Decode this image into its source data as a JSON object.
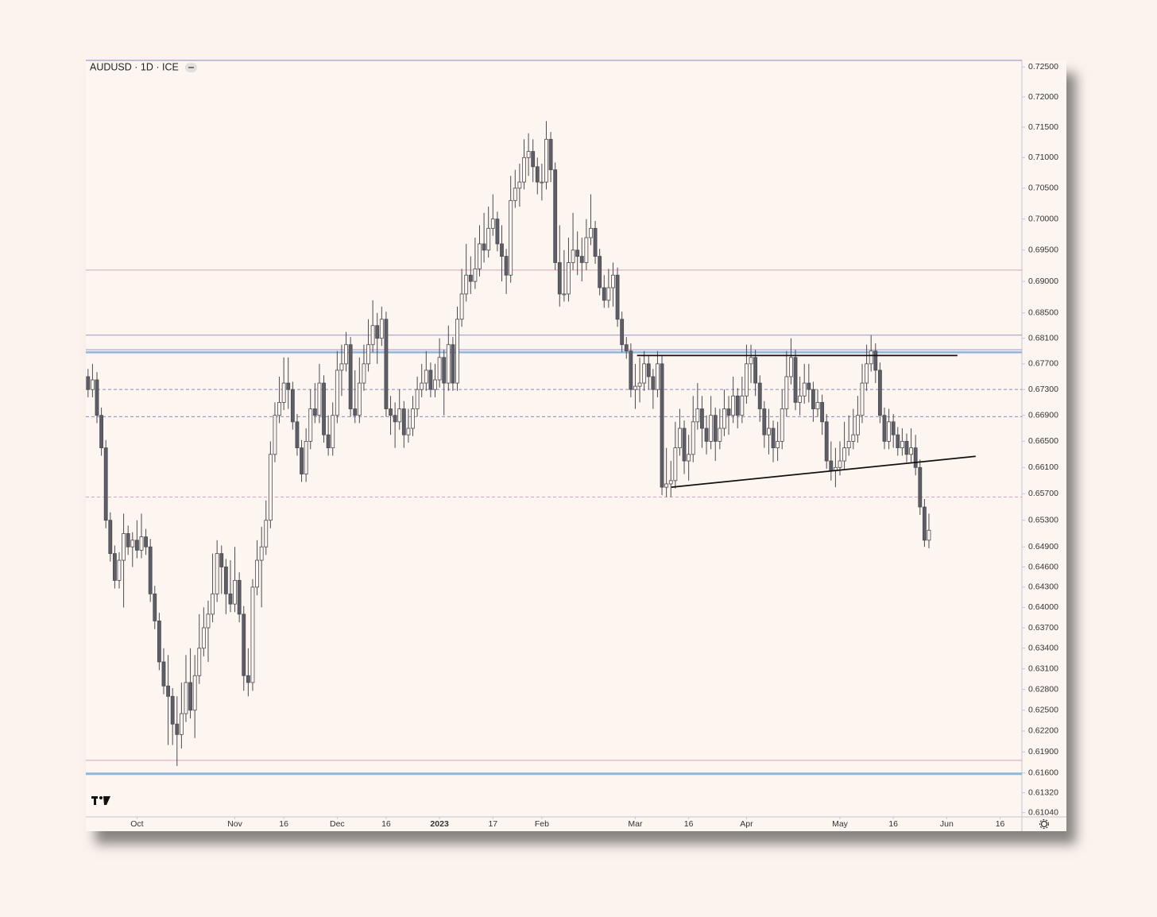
{
  "chart_data": {
    "type": "candlestick",
    "title": "AUDUSD · 1D · ICE",
    "log": true,
    "ylim": [
      0.6098,
      0.7261
    ],
    "xlim": [
      -0.5,
      209.9
    ],
    "yticks": [
      {
        "value": 0.725,
        "label": "0.72500"
      },
      {
        "value": 0.72,
        "label": "0.72000"
      },
      {
        "value": 0.715,
        "label": "0.71500"
      },
      {
        "value": 0.71,
        "label": "0.71000"
      },
      {
        "value": 0.705,
        "label": "0.70500"
      },
      {
        "value": 0.7,
        "label": "0.70000"
      },
      {
        "value": 0.695,
        "label": "0.69500"
      },
      {
        "value": 0.69,
        "label": "0.69000"
      },
      {
        "value": 0.685,
        "label": "0.68500"
      },
      {
        "value": 0.681,
        "label": "0.68100"
      },
      {
        "value": 0.677,
        "label": "0.67700"
      },
      {
        "value": 0.673,
        "label": "0.67300"
      },
      {
        "value": 0.669,
        "label": "0.66900"
      },
      {
        "value": 0.665,
        "label": "0.66500"
      },
      {
        "value": 0.661,
        "label": "0.66100"
      },
      {
        "value": 0.657,
        "label": "0.65700"
      },
      {
        "value": 0.653,
        "label": "0.65300"
      },
      {
        "value": 0.649,
        "label": "0.64900"
      },
      {
        "value": 0.646,
        "label": "0.64600"
      },
      {
        "value": 0.643,
        "label": "0.64300"
      },
      {
        "value": 0.64,
        "label": "0.64000"
      },
      {
        "value": 0.637,
        "label": "0.63700"
      },
      {
        "value": 0.634,
        "label": "0.63400"
      },
      {
        "value": 0.631,
        "label": "0.63100"
      },
      {
        "value": 0.628,
        "label": "0.62800"
      },
      {
        "value": 0.625,
        "label": "0.62500"
      },
      {
        "value": 0.622,
        "label": "0.62200"
      },
      {
        "value": 0.619,
        "label": "0.61900"
      },
      {
        "value": 0.616,
        "label": "0.61600"
      },
      {
        "value": 0.6132,
        "label": "0.61320"
      },
      {
        "value": 0.6104,
        "label": "0.61040"
      }
    ],
    "xticks": [
      {
        "value": 11,
        "label": "Oct"
      },
      {
        "value": 33,
        "label": "Nov"
      },
      {
        "value": 44,
        "label": "16"
      },
      {
        "value": 56,
        "label": "Dec"
      },
      {
        "value": 67,
        "label": "16"
      },
      {
        "value": 79,
        "label": "2023",
        "bold": true
      },
      {
        "value": 91,
        "label": "17"
      },
      {
        "value": 102,
        "label": "Feb"
      },
      {
        "value": 123,
        "label": "Mar"
      },
      {
        "value": 135,
        "label": "16"
      },
      {
        "value": 148,
        "label": "Apr"
      },
      {
        "value": 169,
        "label": "May"
      },
      {
        "value": 181,
        "label": "16"
      },
      {
        "value": 193,
        "label": "Jun"
      },
      {
        "value": 205,
        "label": "16"
      }
    ],
    "up_color": "#fdf5f0",
    "down_color": "#5d5e66",
    "outline_color": "#4a4b52",
    "levels": [
      {
        "value": 0.6918,
        "color": "#d9a3bb",
        "dash": false,
        "width": 1
      },
      {
        "value": 0.6815,
        "color": "#9a96c4",
        "dash": false,
        "width": 1
      },
      {
        "value": 0.6792,
        "color": "#9a96c4",
        "dash": false,
        "width": 1
      },
      {
        "value": 0.6788,
        "color": "#8fb6dc",
        "dash": false,
        "width": 2.5
      },
      {
        "value": 0.673,
        "color": "#8c86c0",
        "dash": true,
        "width": 1
      },
      {
        "value": 0.6688,
        "color": "#8c86c0",
        "dash": true,
        "width": 1
      },
      {
        "value": 0.6565,
        "color": "#d9a3bb",
        "dash": true,
        "width": 1
      },
      {
        "value": 0.6178,
        "color": "#d9a3bb",
        "dash": false,
        "width": 1
      },
      {
        "value": 0.6159,
        "color": "#8fb6dc",
        "dash": false,
        "width": 3
      }
    ],
    "trendlines": [
      {
        "x": [
          123.4,
          195.4
        ],
        "values": [
          0.6783,
          0.6783
        ],
        "color": "#111111"
      },
      {
        "x": [
          131.1,
          199.5
        ],
        "values": [
          0.658,
          0.6627
        ],
        "color": "#111111"
      }
    ],
    "candles": [
      [
        0.675,
        0.6762,
        0.6718,
        0.673
      ],
      [
        0.673,
        0.677,
        0.6718,
        0.6745
      ],
      [
        0.6745,
        0.6757,
        0.6678,
        0.669
      ],
      [
        0.669,
        0.6702,
        0.6628,
        0.664
      ],
      [
        0.664,
        0.6652,
        0.6518,
        0.653
      ],
      [
        0.653,
        0.6542,
        0.6468,
        0.648
      ],
      [
        0.648,
        0.6492,
        0.6428,
        0.644
      ],
      [
        0.644,
        0.6482,
        0.6428,
        0.647
      ],
      [
        0.647,
        0.654,
        0.64,
        0.651
      ],
      [
        0.651,
        0.6522,
        0.6478,
        0.649
      ],
      [
        0.649,
        0.6512,
        0.646,
        0.65
      ],
      [
        0.65,
        0.653,
        0.6473,
        0.6485
      ],
      [
        0.6485,
        0.654,
        0.6473,
        0.6505
      ],
      [
        0.6505,
        0.6517,
        0.6478,
        0.649
      ],
      [
        0.649,
        0.6502,
        0.6408,
        0.642
      ],
      [
        0.642,
        0.6432,
        0.6368,
        0.638
      ],
      [
        0.638,
        0.6392,
        0.6308,
        0.632
      ],
      [
        0.632,
        0.634,
        0.6273,
        0.6285
      ],
      [
        0.6285,
        0.633,
        0.62,
        0.627
      ],
      [
        0.627,
        0.6282,
        0.62,
        0.623
      ],
      [
        0.623,
        0.627,
        0.617,
        0.6215
      ],
      [
        0.6215,
        0.629,
        0.6195,
        0.6245
      ],
      [
        0.6245,
        0.633,
        0.6233,
        0.629
      ],
      [
        0.629,
        0.634,
        0.6238,
        0.625
      ],
      [
        0.625,
        0.633,
        0.621,
        0.63
      ],
      [
        0.63,
        0.639,
        0.6288,
        0.634
      ],
      [
        0.634,
        0.64,
        0.6328,
        0.637
      ],
      [
        0.637,
        0.641,
        0.632,
        0.639
      ],
      [
        0.639,
        0.648,
        0.6378,
        0.642
      ],
      [
        0.642,
        0.65,
        0.6408,
        0.648
      ],
      [
        0.648,
        0.6492,
        0.642,
        0.646
      ],
      [
        0.646,
        0.6472,
        0.639,
        0.642
      ],
      [
        0.642,
        0.647,
        0.6393,
        0.6405
      ],
      [
        0.6405,
        0.649,
        0.6393,
        0.644
      ],
      [
        0.644,
        0.6452,
        0.6378,
        0.639
      ],
      [
        0.639,
        0.6402,
        0.6278,
        0.63
      ],
      [
        0.63,
        0.634,
        0.627,
        0.629
      ],
      [
        0.629,
        0.6442,
        0.6278,
        0.643
      ],
      [
        0.643,
        0.65,
        0.6418,
        0.647
      ],
      [
        0.647,
        0.652,
        0.64,
        0.649
      ],
      [
        0.649,
        0.656,
        0.6478,
        0.653
      ],
      [
        0.653,
        0.665,
        0.6518,
        0.663
      ],
      [
        0.663,
        0.671,
        0.6618,
        0.669
      ],
      [
        0.669,
        0.675,
        0.6678,
        0.671
      ],
      [
        0.671,
        0.678,
        0.6698,
        0.674
      ],
      [
        0.674,
        0.678,
        0.67,
        0.673
      ],
      [
        0.673,
        0.6742,
        0.6668,
        0.668
      ],
      [
        0.668,
        0.6692,
        0.6628,
        0.664
      ],
      [
        0.664,
        0.6652,
        0.6588,
        0.66
      ],
      [
        0.66,
        0.667,
        0.6588,
        0.665
      ],
      [
        0.665,
        0.673,
        0.6638,
        0.67
      ],
      [
        0.67,
        0.674,
        0.6678,
        0.669
      ],
      [
        0.669,
        0.677,
        0.6678,
        0.674
      ],
      [
        0.674,
        0.6752,
        0.6648,
        0.666
      ],
      [
        0.666,
        0.669,
        0.6628,
        0.664
      ],
      [
        0.664,
        0.671,
        0.6628,
        0.669
      ],
      [
        0.669,
        0.679,
        0.6678,
        0.676
      ],
      [
        0.676,
        0.68,
        0.672,
        0.677
      ],
      [
        0.677,
        0.682,
        0.6758,
        0.68
      ],
      [
        0.68,
        0.6812,
        0.6688,
        0.67
      ],
      [
        0.67,
        0.676,
        0.6678,
        0.669
      ],
      [
        0.669,
        0.678,
        0.6678,
        0.674
      ],
      [
        0.674,
        0.68,
        0.6728,
        0.677
      ],
      [
        0.677,
        0.684,
        0.6758,
        0.68
      ],
      [
        0.68,
        0.687,
        0.6788,
        0.683
      ],
      [
        0.683,
        0.685,
        0.677,
        0.681
      ],
      [
        0.681,
        0.686,
        0.6798,
        0.684
      ],
      [
        0.684,
        0.6852,
        0.6688,
        0.67
      ],
      [
        0.67,
        0.672,
        0.666,
        0.669
      ],
      [
        0.669,
        0.671,
        0.664,
        0.668
      ],
      [
        0.668,
        0.673,
        0.6668,
        0.67
      ],
      [
        0.67,
        0.6712,
        0.664,
        0.666
      ],
      [
        0.666,
        0.67,
        0.6648,
        0.667
      ],
      [
        0.667,
        0.672,
        0.6658,
        0.67
      ],
      [
        0.67,
        0.675,
        0.6688,
        0.673
      ],
      [
        0.673,
        0.677,
        0.6718,
        0.674
      ],
      [
        0.674,
        0.679,
        0.6728,
        0.676
      ],
      [
        0.676,
        0.6772,
        0.6718,
        0.673
      ],
      [
        0.673,
        0.677,
        0.6718,
        0.6745
      ],
      [
        0.6745,
        0.681,
        0.6733,
        0.678
      ],
      [
        0.678,
        0.6792,
        0.669,
        0.674
      ],
      [
        0.674,
        0.683,
        0.6728,
        0.68
      ],
      [
        0.68,
        0.6812,
        0.6728,
        0.674
      ],
      [
        0.674,
        0.686,
        0.6728,
        0.684
      ],
      [
        0.684,
        0.692,
        0.6828,
        0.688
      ],
      [
        0.688,
        0.696,
        0.6868,
        0.691
      ],
      [
        0.691,
        0.694,
        0.688,
        0.69
      ],
      [
        0.69,
        0.697,
        0.6888,
        0.692
      ],
      [
        0.692,
        0.699,
        0.6908,
        0.696
      ],
      [
        0.696,
        0.701,
        0.693,
        0.695
      ],
      [
        0.695,
        0.702,
        0.6938,
        0.6985
      ],
      [
        0.6985,
        0.704,
        0.6973,
        0.7
      ],
      [
        0.7,
        0.7012,
        0.6948,
        0.696
      ],
      [
        0.696,
        0.699,
        0.69,
        0.694
      ],
      [
        0.694,
        0.6952,
        0.688,
        0.691
      ],
      [
        0.691,
        0.707,
        0.6898,
        0.703
      ],
      [
        0.703,
        0.708,
        0.7018,
        0.705
      ],
      [
        0.705,
        0.709,
        0.702,
        0.706
      ],
      [
        0.706,
        0.713,
        0.7048,
        0.71
      ],
      [
        0.71,
        0.714,
        0.707,
        0.711
      ],
      [
        0.711,
        0.713,
        0.706,
        0.7085
      ],
      [
        0.7085,
        0.71,
        0.704,
        0.706
      ],
      [
        0.706,
        0.709,
        0.703,
        0.706
      ],
      [
        0.706,
        0.716,
        0.7048,
        0.713
      ],
      [
        0.713,
        0.7142,
        0.706,
        0.708
      ],
      [
        0.708,
        0.7092,
        0.6918,
        0.693
      ],
      [
        0.693,
        0.699,
        0.686,
        0.688
      ],
      [
        0.688,
        0.695,
        0.6868,
        0.688
      ],
      [
        0.688,
        0.697,
        0.6868,
        0.693
      ],
      [
        0.693,
        0.701,
        0.6918,
        0.695
      ],
      [
        0.695,
        0.698,
        0.691,
        0.694
      ],
      [
        0.694,
        0.697,
        0.69,
        0.693
      ],
      [
        0.693,
        0.7,
        0.6918,
        0.697
      ],
      [
        0.697,
        0.704,
        0.6958,
        0.6985
      ],
      [
        0.6985,
        0.6997,
        0.6928,
        0.694
      ],
      [
        0.694,
        0.6952,
        0.6878,
        0.689
      ],
      [
        0.689,
        0.691,
        0.6858,
        0.687
      ],
      [
        0.687,
        0.692,
        0.6858,
        0.689
      ],
      [
        0.689,
        0.693,
        0.686,
        0.691
      ],
      [
        0.691,
        0.6922,
        0.6828,
        0.684
      ],
      [
        0.684,
        0.6852,
        0.6788,
        0.68
      ],
      [
        0.68,
        0.6812,
        0.6778,
        0.679
      ],
      [
        0.679,
        0.6802,
        0.6718,
        0.673
      ],
      [
        0.673,
        0.677,
        0.67,
        0.6735
      ],
      [
        0.6735,
        0.678,
        0.671,
        0.674
      ],
      [
        0.674,
        0.679,
        0.6728,
        0.677
      ],
      [
        0.677,
        0.6782,
        0.673,
        0.675
      ],
      [
        0.675,
        0.6762,
        0.67,
        0.673
      ],
      [
        0.673,
        0.679,
        0.6718,
        0.677
      ],
      [
        0.677,
        0.6782,
        0.6568,
        0.658
      ],
      [
        0.658,
        0.664,
        0.6565,
        0.6585
      ],
      [
        0.6585,
        0.662,
        0.6565,
        0.659
      ],
      [
        0.659,
        0.668,
        0.6578,
        0.664
      ],
      [
        0.664,
        0.67,
        0.6628,
        0.667
      ],
      [
        0.667,
        0.6682,
        0.66,
        0.662
      ],
      [
        0.662,
        0.666,
        0.659,
        0.663
      ],
      [
        0.663,
        0.672,
        0.6618,
        0.668
      ],
      [
        0.668,
        0.674,
        0.6668,
        0.67
      ],
      [
        0.67,
        0.672,
        0.664,
        0.667
      ],
      [
        0.667,
        0.669,
        0.663,
        0.665
      ],
      [
        0.665,
        0.672,
        0.6638,
        0.669
      ],
      [
        0.669,
        0.6702,
        0.662,
        0.665
      ],
      [
        0.665,
        0.67,
        0.6638,
        0.667
      ],
      [
        0.667,
        0.673,
        0.6658,
        0.67
      ],
      [
        0.67,
        0.672,
        0.666,
        0.669
      ],
      [
        0.669,
        0.675,
        0.6678,
        0.672
      ],
      [
        0.672,
        0.6732,
        0.667,
        0.669
      ],
      [
        0.669,
        0.675,
        0.6678,
        0.672
      ],
      [
        0.672,
        0.68,
        0.6708,
        0.677
      ],
      [
        0.677,
        0.68,
        0.674,
        0.678
      ],
      [
        0.678,
        0.6792,
        0.672,
        0.674
      ],
      [
        0.674,
        0.6752,
        0.668,
        0.67
      ],
      [
        0.67,
        0.6712,
        0.664,
        0.666
      ],
      [
        0.666,
        0.67,
        0.663,
        0.667
      ],
      [
        0.667,
        0.6682,
        0.6618,
        0.664
      ],
      [
        0.664,
        0.668,
        0.662,
        0.665
      ],
      [
        0.665,
        0.673,
        0.6638,
        0.67
      ],
      [
        0.67,
        0.679,
        0.6688,
        0.675
      ],
      [
        0.675,
        0.681,
        0.6738,
        0.678
      ],
      [
        0.678,
        0.6792,
        0.6698,
        0.671
      ],
      [
        0.671,
        0.675,
        0.669,
        0.672
      ],
      [
        0.672,
        0.677,
        0.6708,
        0.674
      ],
      [
        0.674,
        0.677,
        0.671,
        0.673
      ],
      [
        0.673,
        0.6742,
        0.668,
        0.67
      ],
      [
        0.67,
        0.673,
        0.6688,
        0.671
      ],
      [
        0.671,
        0.6722,
        0.666,
        0.668
      ],
      [
        0.668,
        0.6692,
        0.6608,
        0.662
      ],
      [
        0.662,
        0.665,
        0.659,
        0.6605
      ],
      [
        0.6605,
        0.664,
        0.658,
        0.661
      ],
      [
        0.661,
        0.665,
        0.6598,
        0.662
      ],
      [
        0.662,
        0.668,
        0.6608,
        0.664
      ],
      [
        0.664,
        0.669,
        0.6628,
        0.665
      ],
      [
        0.665,
        0.67,
        0.6638,
        0.666
      ],
      [
        0.666,
        0.672,
        0.6648,
        0.669
      ],
      [
        0.669,
        0.677,
        0.6678,
        0.674
      ],
      [
        0.674,
        0.68,
        0.6728,
        0.677
      ],
      [
        0.677,
        0.6815,
        0.6758,
        0.679
      ],
      [
        0.679,
        0.6802,
        0.674,
        0.676
      ],
      [
        0.676,
        0.6772,
        0.6678,
        0.669
      ],
      [
        0.669,
        0.6702,
        0.6638,
        0.665
      ],
      [
        0.665,
        0.67,
        0.6638,
        0.668
      ],
      [
        0.668,
        0.6692,
        0.664,
        0.666
      ],
      [
        0.666,
        0.6672,
        0.6628,
        0.664
      ],
      [
        0.664,
        0.667,
        0.6628,
        0.665
      ],
      [
        0.665,
        0.6662,
        0.6618,
        0.663
      ],
      [
        0.663,
        0.667,
        0.6618,
        0.664
      ],
      [
        0.664,
        0.666,
        0.6598,
        0.661
      ],
      [
        0.661,
        0.6622,
        0.6538,
        0.655
      ],
      [
        0.655,
        0.6562,
        0.649,
        0.65
      ],
      [
        0.65,
        0.654,
        0.6488,
        0.6515
      ]
    ]
  }
}
